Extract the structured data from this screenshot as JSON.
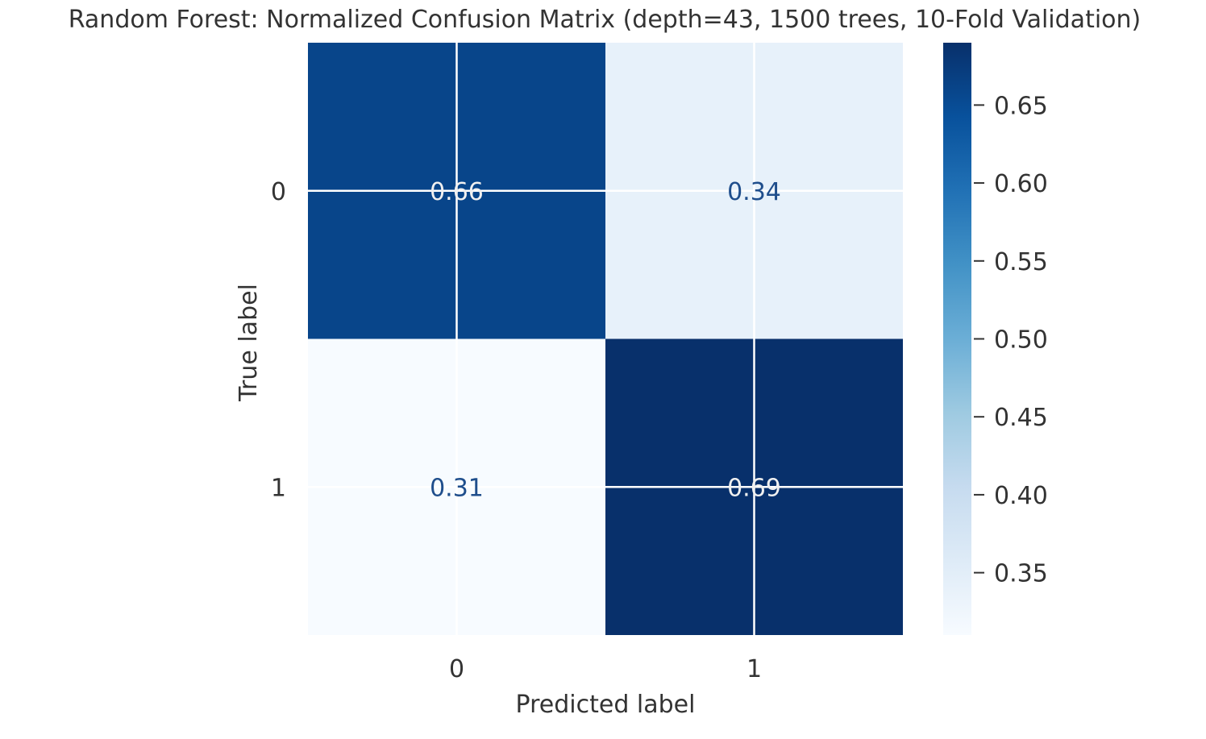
{
  "chart_data": {
    "type": "heatmap",
    "title": "Random Forest: Normalized Confusion Matrix (depth=43, 1500 trees, 10-Fold Validation)",
    "xlabel": "Predicted label",
    "ylabel": "True label",
    "x_categories": [
      "0",
      "1"
    ],
    "y_categories": [
      "0",
      "1"
    ],
    "matrix": [
      [
        0.66,
        0.34
      ],
      [
        0.31,
        0.69
      ]
    ],
    "cell_labels": [
      [
        "0.66",
        "0.34"
      ],
      [
        "0.31",
        "0.69"
      ]
    ],
    "colormap": "Blues",
    "colorbar": {
      "min": 0.31,
      "max": 0.69,
      "ticks": [
        0.35,
        0.4,
        0.45,
        0.5,
        0.55,
        0.6,
        0.65
      ],
      "tick_labels": [
        "0.35",
        "0.40",
        "0.45",
        "0.50",
        "0.55",
        "0.60",
        "0.65"
      ]
    },
    "grid": true,
    "colors": {
      "text_dark_cell": "#f0f0f0",
      "text_light_cell": "#1f4e8c",
      "grid": "#ffffff",
      "axis_text": "#333333"
    }
  }
}
